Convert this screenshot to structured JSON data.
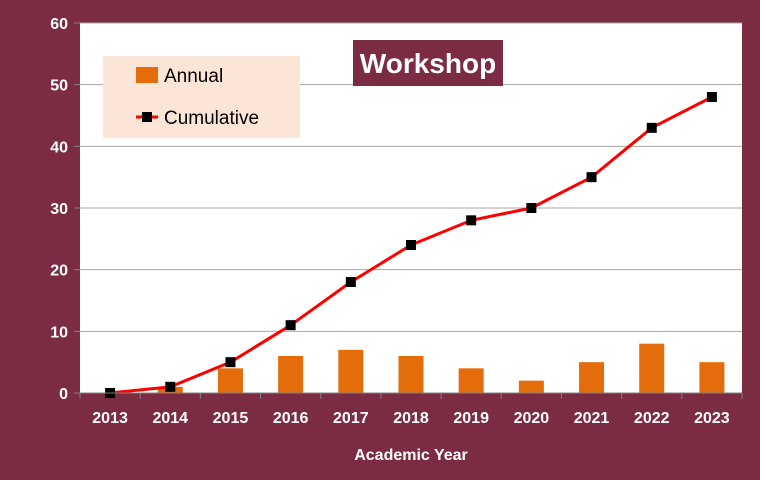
{
  "chart_data": {
    "type": "bar",
    "title": "Workshop",
    "xlabel": "Academic Year",
    "ylabel": "",
    "categories": [
      "2013",
      "2014",
      "2015",
      "2016",
      "2017",
      "2018",
      "2019",
      "2020",
      "2021",
      "2022",
      "2023"
    ],
    "ylim": [
      0,
      60
    ],
    "yticks": [
      0,
      10,
      20,
      30,
      40,
      50,
      60
    ],
    "grid": true,
    "legend_position": "top-left",
    "series": [
      {
        "name": "Annual",
        "type": "bar",
        "color": "#e46c0a",
        "values": [
          0,
          1,
          4,
          6,
          7,
          6,
          4,
          2,
          5,
          8,
          5
        ]
      },
      {
        "name": "Cumulative",
        "type": "line",
        "color": "#ff0000",
        "marker_color": "#000000",
        "values": [
          0,
          1,
          5,
          11,
          18,
          24,
          28,
          30,
          35,
          43,
          48
        ]
      }
    ]
  },
  "colors": {
    "background": "#7b2c42",
    "plot_area": "#ffffff",
    "legend_box": "#fbe5d6",
    "title_box": "#7b2c42",
    "gridline": "#a6a6a6"
  }
}
